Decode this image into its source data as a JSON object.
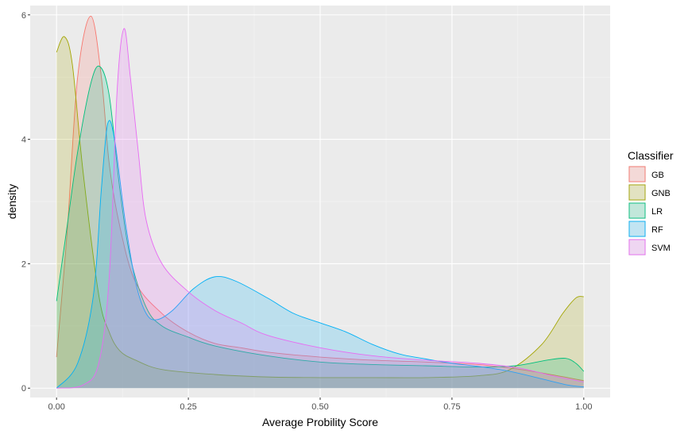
{
  "chart_data": {
    "type": "area",
    "xlabel": "Average Probility Score",
    "ylabel": "density",
    "xlim": [
      -0.05,
      1.05
    ],
    "ylim": [
      -0.15,
      6.15
    ],
    "x_ticks": [
      "0.00",
      "0.25",
      "0.50",
      "0.75",
      "1.00"
    ],
    "x_tick_values": [
      0,
      0.25,
      0.5,
      0.75,
      1.0
    ],
    "y_ticks": [
      "0",
      "2",
      "4",
      "6"
    ],
    "y_tick_values": [
      0,
      2,
      4,
      6
    ],
    "grid": true,
    "legend": {
      "title": "Classifier",
      "position": "right"
    },
    "series": [
      {
        "name": "GB",
        "color": "#F8766D",
        "points": [
          [
            0,
            0.5
          ],
          [
            0.02,
            2.5
          ],
          [
            0.04,
            5.0
          ],
          [
            0.065,
            5.98
          ],
          [
            0.085,
            5.0
          ],
          [
            0.1,
            3.6
          ],
          [
            0.12,
            2.6
          ],
          [
            0.15,
            1.7
          ],
          [
            0.2,
            1.2
          ],
          [
            0.25,
            0.9
          ],
          [
            0.3,
            0.72
          ],
          [
            0.35,
            0.65
          ],
          [
            0.4,
            0.58
          ],
          [
            0.5,
            0.5
          ],
          [
            0.6,
            0.45
          ],
          [
            0.7,
            0.42
          ],
          [
            0.8,
            0.38
          ],
          [
            0.88,
            0.3
          ],
          [
            0.95,
            0.2
          ],
          [
            1.0,
            0.12
          ]
        ]
      },
      {
        "name": "GNB",
        "color": "#A3A500",
        "points": [
          [
            0,
            5.4
          ],
          [
            0.015,
            5.65
          ],
          [
            0.03,
            5.2
          ],
          [
            0.05,
            3.5
          ],
          [
            0.08,
            1.5
          ],
          [
            0.1,
            0.9
          ],
          [
            0.12,
            0.6
          ],
          [
            0.15,
            0.45
          ],
          [
            0.2,
            0.3
          ],
          [
            0.3,
            0.22
          ],
          [
            0.4,
            0.18
          ],
          [
            0.5,
            0.17
          ],
          [
            0.6,
            0.17
          ],
          [
            0.7,
            0.17
          ],
          [
            0.8,
            0.2
          ],
          [
            0.86,
            0.3
          ],
          [
            0.92,
            0.7
          ],
          [
            0.96,
            1.2
          ],
          [
            0.985,
            1.45
          ],
          [
            1.0,
            1.47
          ]
        ]
      },
      {
        "name": "LR",
        "color": "#00BF7D",
        "points": [
          [
            0,
            1.4
          ],
          [
            0.02,
            2.6
          ],
          [
            0.04,
            3.8
          ],
          [
            0.065,
            4.9
          ],
          [
            0.082,
            5.17
          ],
          [
            0.1,
            4.7
          ],
          [
            0.12,
            3.2
          ],
          [
            0.14,
            2.1
          ],
          [
            0.17,
            1.3
          ],
          [
            0.2,
            1.0
          ],
          [
            0.25,
            0.82
          ],
          [
            0.3,
            0.68
          ],
          [
            0.4,
            0.52
          ],
          [
            0.5,
            0.42
          ],
          [
            0.6,
            0.38
          ],
          [
            0.7,
            0.36
          ],
          [
            0.8,
            0.34
          ],
          [
            0.87,
            0.36
          ],
          [
            0.93,
            0.45
          ],
          [
            0.965,
            0.48
          ],
          [
            0.985,
            0.4
          ],
          [
            1.0,
            0.27
          ]
        ]
      },
      {
        "name": "RF",
        "color": "#00B0F6",
        "points": [
          [
            0,
            0
          ],
          [
            0.04,
            0.4
          ],
          [
            0.07,
            1.5
          ],
          [
            0.085,
            3.2
          ],
          [
            0.097,
            4.25
          ],
          [
            0.11,
            4.0
          ],
          [
            0.13,
            2.7
          ],
          [
            0.15,
            1.7
          ],
          [
            0.17,
            1.2
          ],
          [
            0.19,
            1.1
          ],
          [
            0.22,
            1.25
          ],
          [
            0.26,
            1.6
          ],
          [
            0.3,
            1.79
          ],
          [
            0.34,
            1.72
          ],
          [
            0.4,
            1.45
          ],
          [
            0.45,
            1.2
          ],
          [
            0.5,
            1.05
          ],
          [
            0.55,
            0.9
          ],
          [
            0.6,
            0.7
          ],
          [
            0.65,
            0.55
          ],
          [
            0.7,
            0.47
          ],
          [
            0.75,
            0.4
          ],
          [
            0.8,
            0.35
          ],
          [
            0.86,
            0.27
          ],
          [
            0.92,
            0.15
          ],
          [
            0.97,
            0.05
          ],
          [
            1.0,
            0.02
          ]
        ]
      },
      {
        "name": "SVM",
        "color": "#E76BF3",
        "points": [
          [
            0,
            0
          ],
          [
            0.05,
            0.05
          ],
          [
            0.08,
            0.4
          ],
          [
            0.1,
            1.8
          ],
          [
            0.115,
            4.8
          ],
          [
            0.128,
            5.78
          ],
          [
            0.14,
            5.0
          ],
          [
            0.155,
            3.8
          ],
          [
            0.17,
            2.7
          ],
          [
            0.2,
            2.0
          ],
          [
            0.25,
            1.55
          ],
          [
            0.3,
            1.25
          ],
          [
            0.35,
            1.05
          ],
          [
            0.4,
            0.85
          ],
          [
            0.5,
            0.65
          ],
          [
            0.6,
            0.52
          ],
          [
            0.7,
            0.45
          ],
          [
            0.8,
            0.4
          ],
          [
            0.88,
            0.32
          ],
          [
            0.94,
            0.2
          ],
          [
            1.0,
            0.1
          ]
        ]
      }
    ]
  }
}
